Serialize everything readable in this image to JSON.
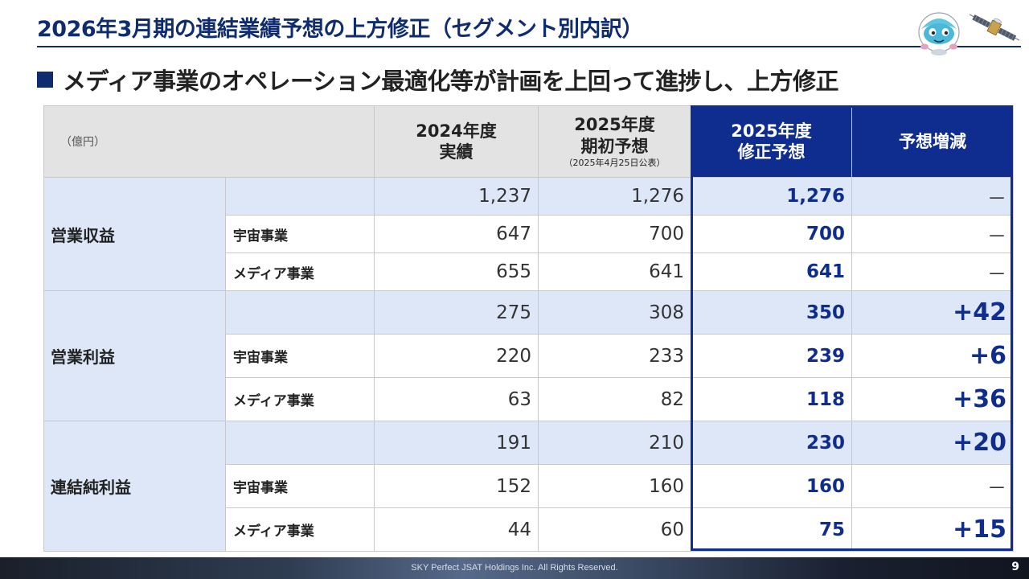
{
  "slide": {
    "title": "2026年3月期の連結業績予想の上方修正（セグメント別内訳）",
    "bullet": "メディア事業のオペレーション最適化等が計画を上回って進捗し、上方修正",
    "footer": "SKY Perfect JSAT Holdings Inc. All Rights Reserved.",
    "page_number": "9"
  },
  "table": {
    "unit": "（億円）",
    "headers": {
      "fy2024_line1": "2024年度",
      "fy2024_line2": "実績",
      "initial_line1": "2025年度",
      "initial_line2": "期初予想",
      "initial_note": "（2025年4月25日公表）",
      "revised_line1": "2025年度",
      "revised_line2": "修正予想",
      "delta": "予想増減"
    },
    "groups": [
      {
        "name": "営業収益",
        "total": {
          "fy2024": "1,237",
          "initial": "1,276",
          "revised": "1,276",
          "delta": "－"
        },
        "segments": [
          {
            "label": "宇宙事業",
            "fy2024": "647",
            "initial": "700",
            "revised": "700",
            "delta": "－"
          },
          {
            "label": "メディア事業",
            "fy2024": "655",
            "initial": "641",
            "revised": "641",
            "delta": "－"
          }
        ]
      },
      {
        "name": "営業利益",
        "total": {
          "fy2024": "275",
          "initial": "308",
          "revised": "350",
          "delta": "+42"
        },
        "segments": [
          {
            "label": "宇宙事業",
            "fy2024": "220",
            "initial": "233",
            "revised": "239",
            "delta": "+6"
          },
          {
            "label": "メディア事業",
            "fy2024": "63",
            "initial": "82",
            "revised": "118",
            "delta": "+36"
          }
        ]
      },
      {
        "name": "連結純利益",
        "total": {
          "fy2024": "191",
          "initial": "210",
          "revised": "230",
          "delta": "+20"
        },
        "segments": [
          {
            "label": "宇宙事業",
            "fy2024": "152",
            "initial": "160",
            "revised": "160",
            "delta": "－"
          },
          {
            "label": "メディア事業",
            "fy2024": "44",
            "initial": "60",
            "revised": "75",
            "delta": "+15"
          }
        ]
      }
    ]
  },
  "colors": {
    "navy": "#0f2d6e",
    "accent_blue": "#0f2d8e",
    "row_tint": "#dde7f8",
    "header_gray": "#e3e3e3"
  },
  "icons": [
    "mascot-icon",
    "satellite-icon"
  ]
}
